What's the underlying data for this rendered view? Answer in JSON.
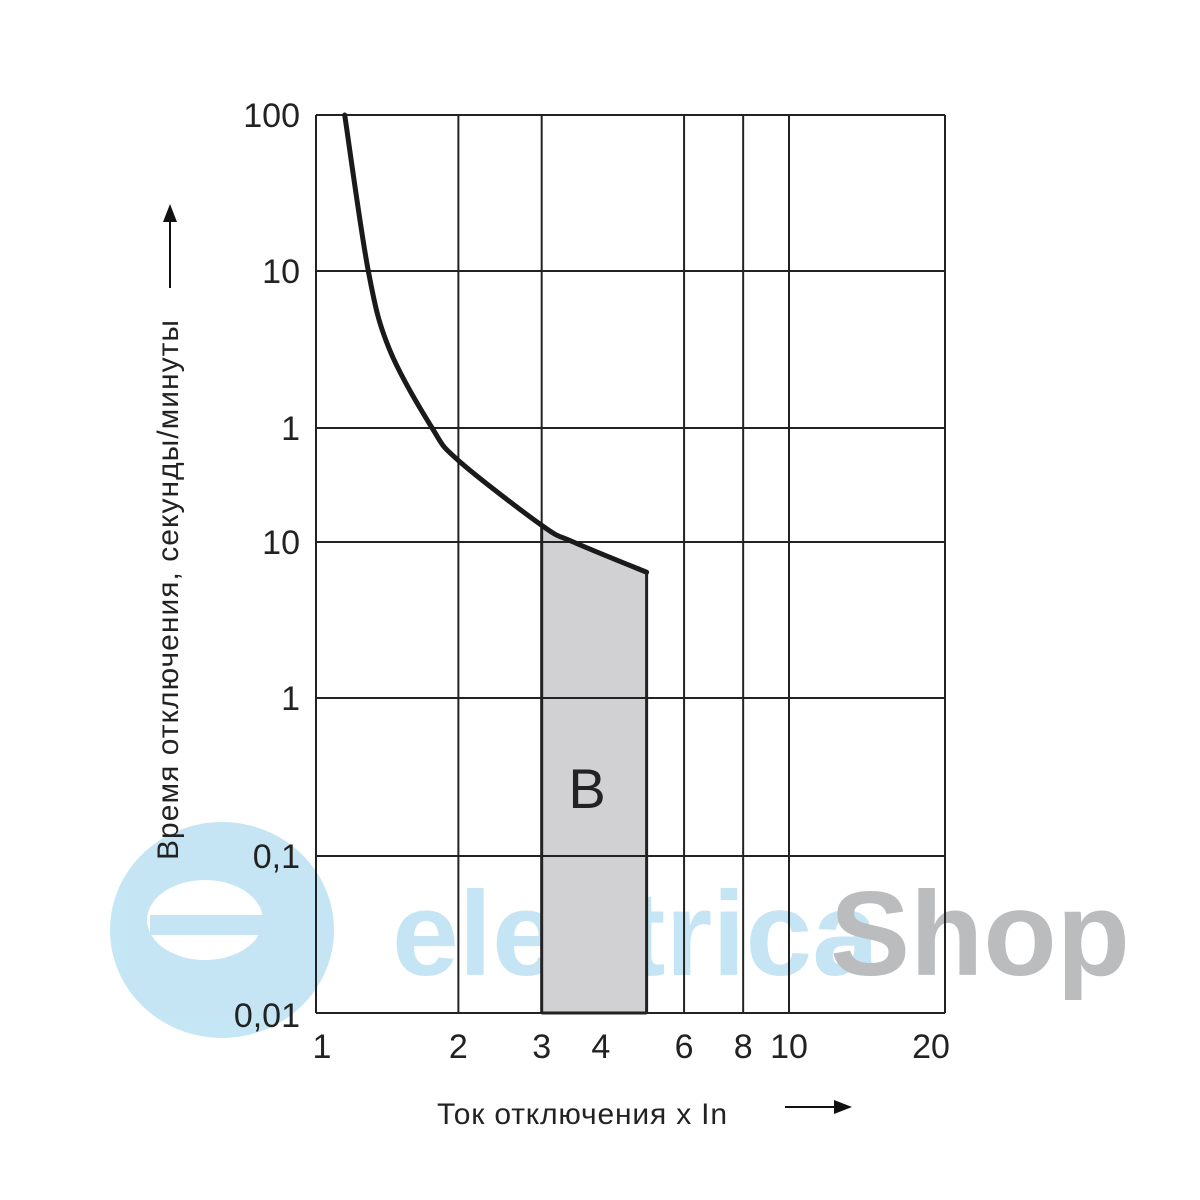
{
  "chart_data": {
    "type": "line",
    "title": "",
    "xlabel": "Ток отключения x In",
    "ylabel": "Время отключения, секунды/минуты",
    "x_scale": "log",
    "y_scale": "log",
    "xlim": [
      1,
      20
    ],
    "x_ticks": [
      {
        "value": 1,
        "label": "1",
        "grid": true
      },
      {
        "value": 2,
        "label": "2",
        "grid": true
      },
      {
        "value": 3,
        "label": "3",
        "grid": true
      },
      {
        "value": 4,
        "label": "4",
        "grid": false
      },
      {
        "value": 6,
        "label": "6",
        "grid": true
      },
      {
        "value": 8,
        "label": "8",
        "grid": true
      },
      {
        "value": 10,
        "label": "10",
        "grid": true
      },
      {
        "value": 20,
        "label": "20",
        "grid": true
      }
    ],
    "y_ticks": [
      {
        "seconds": 6000,
        "label": "100",
        "unit": "min"
      },
      {
        "seconds": 600,
        "label": "10",
        "unit": "min"
      },
      {
        "seconds": 60,
        "label": "1",
        "unit": "min"
      },
      {
        "seconds": 10,
        "label": "10",
        "unit": "s"
      },
      {
        "seconds": 1,
        "label": "1",
        "unit": "s"
      },
      {
        "seconds": 0.1,
        "label": "0,1",
        "unit": "s"
      },
      {
        "seconds": 0.01,
        "label": "0,01",
        "unit": "s"
      }
    ],
    "grid": true,
    "curve": {
      "x": [
        1.15,
        1.29,
        1.43,
        1.76,
        2.0,
        3.0,
        3.5,
        5.0
      ],
      "y_seconds": [
        6000,
        600,
        190,
        60,
        36,
        13,
        10,
        6.4
      ]
    },
    "region": {
      "label": "B",
      "x_range": [
        3,
        5
      ],
      "y_bottom_seconds": 0.01,
      "color": "#d1d1d3"
    },
    "line_color": "#1a1a1a"
  },
  "watermark": {
    "text_part1": "electrica",
    "text_part2": "Shop",
    "color1": "#bfe3f4",
    "color2": "#b3b5b8"
  }
}
